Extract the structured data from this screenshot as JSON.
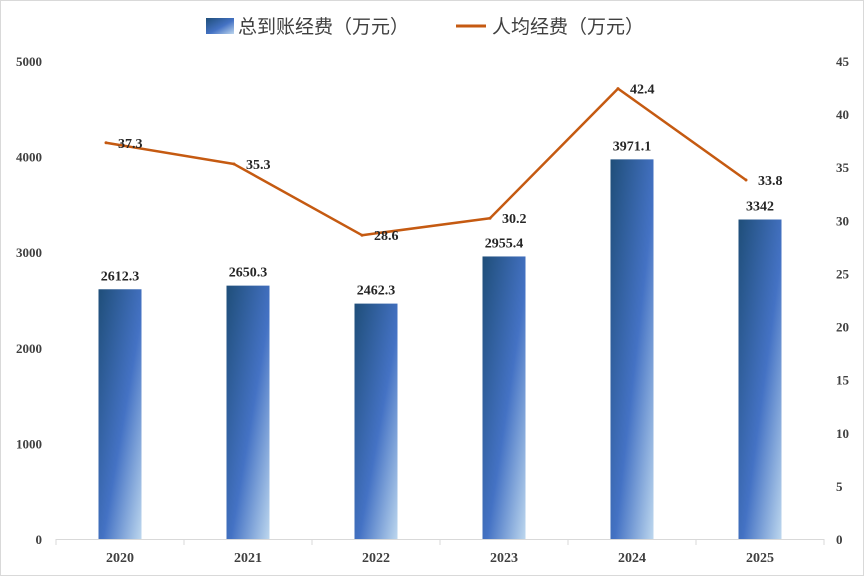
{
  "chart_data": {
    "type": "bar",
    "categories": [
      "2020",
      "2021",
      "2022",
      "2023",
      "2024",
      "2025"
    ],
    "series": [
      {
        "name": "总到账经费（万元）",
        "type": "bar",
        "axis": "left",
        "values": [
          2612.3,
          2650.3,
          2462.3,
          2955.4,
          3971.1,
          3342
        ],
        "labels": [
          "2612.3",
          "2650.3",
          "2462.3",
          "2955.4",
          "3971.1",
          "3342"
        ]
      },
      {
        "name": "人均经费（万元）",
        "type": "line",
        "axis": "right",
        "values": [
          37.3,
          35.3,
          28.6,
          30.2,
          42.4,
          33.8
        ],
        "labels": [
          "37.3",
          "35.3",
          "28.6",
          "30.2",
          "42.4",
          "33.8"
        ]
      }
    ],
    "y_left": {
      "ylim": [
        0,
        5000
      ],
      "ticks": [
        "0",
        "1000",
        "2000",
        "3000",
        "4000",
        "5000"
      ]
    },
    "y_right": {
      "ylim": [
        0,
        45
      ],
      "ticks": [
        "0",
        "5",
        "10",
        "15",
        "20",
        "25",
        "30",
        "35",
        "40",
        "45"
      ]
    },
    "grid": false,
    "legend_position": "top-center",
    "colors": {
      "bar_dark": "#1f4e79",
      "bar_mid": "#4472c4",
      "bar_light": "#bdd7ee",
      "line": "#c55a11",
      "axis": "#d9d9d9"
    }
  }
}
